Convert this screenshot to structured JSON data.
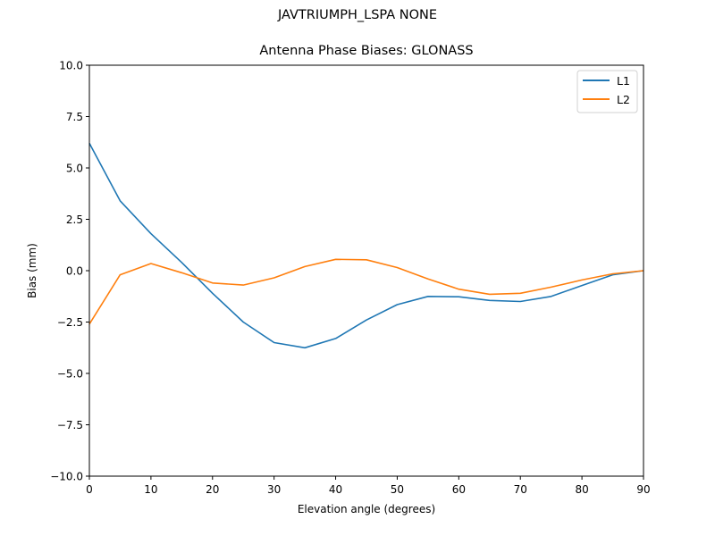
{
  "figure": {
    "suptitle": "JAVTRIUMPH_LSPA NONE",
    "title": "Antenna Phase Biases: GLONASS"
  },
  "chart_data": {
    "type": "line",
    "suptitle": "JAVTRIUMPH_LSPA NONE",
    "title": "Antenna Phase Biases: GLONASS",
    "xlabel": "Elevation angle (degrees)",
    "ylabel": "Bias (mm)",
    "xlim": [
      0,
      90
    ],
    "ylim": [
      -10,
      10
    ],
    "xticks": [
      0,
      10,
      20,
      30,
      40,
      50,
      60,
      70,
      80,
      90
    ],
    "yticks": [
      -10.0,
      -7.5,
      -5.0,
      -2.5,
      0.0,
      2.5,
      5.0,
      7.5,
      10.0
    ],
    "xtick_labels": [
      "0",
      "10",
      "20",
      "30",
      "40",
      "50",
      "60",
      "70",
      "80",
      "90"
    ],
    "ytick_labels": [
      "−10.0",
      "−7.5",
      "−5.0",
      "−2.5",
      "0.0",
      "2.5",
      "5.0",
      "7.5",
      "10.0"
    ],
    "grid": false,
    "legend_position": "upper right",
    "x": [
      0,
      5,
      10,
      15,
      20,
      25,
      30,
      35,
      40,
      45,
      50,
      55,
      60,
      65,
      70,
      75,
      80,
      85,
      90
    ],
    "series": [
      {
        "name": "L1",
        "color": "#1f77b4",
        "values": [
          6.2,
          3.4,
          1.8,
          0.4,
          -1.1,
          -2.5,
          -3.5,
          -3.75,
          -3.3,
          -2.4,
          -1.65,
          -1.25,
          -1.27,
          -1.45,
          -1.5,
          -1.25,
          -0.72,
          -0.2,
          0.0
        ]
      },
      {
        "name": "L2",
        "color": "#ff7f0e",
        "values": [
          -2.6,
          -0.2,
          0.35,
          -0.1,
          -0.6,
          -0.7,
          -0.35,
          0.2,
          0.55,
          0.53,
          0.15,
          -0.4,
          -0.9,
          -1.15,
          -1.1,
          -0.8,
          -0.45,
          -0.15,
          0.0
        ]
      }
    ]
  }
}
